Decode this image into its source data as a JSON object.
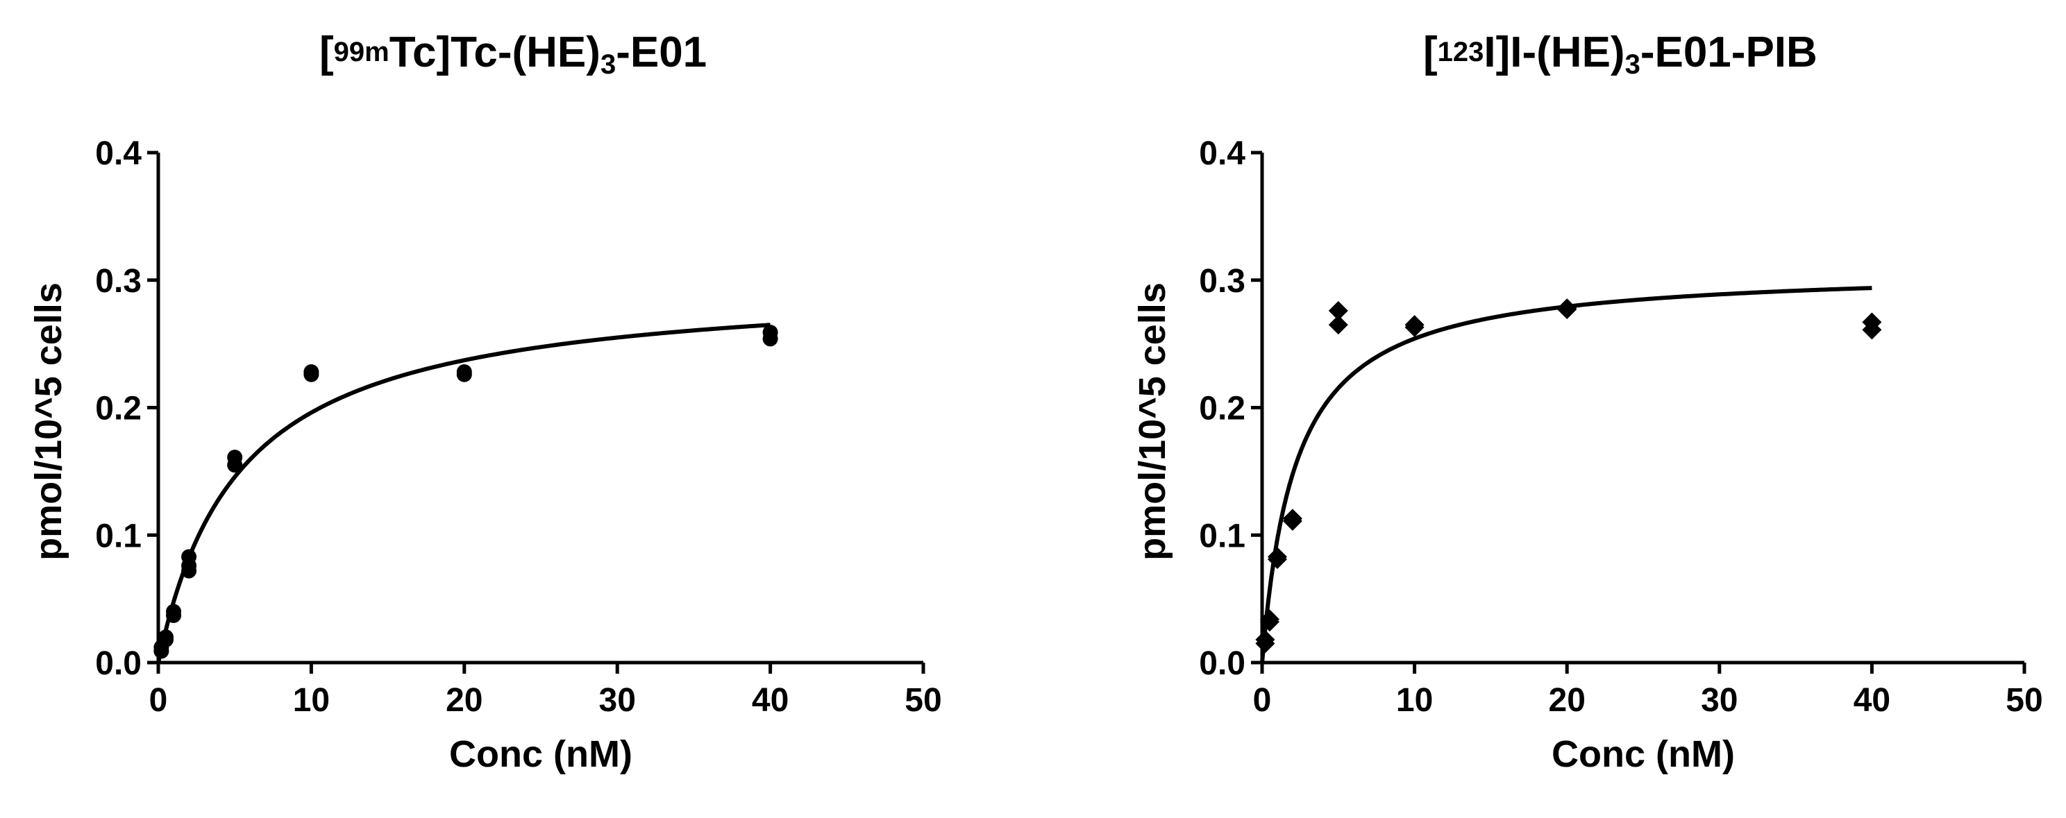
{
  "chart_data": [
    {
      "type": "scatter",
      "title": {
        "pre": "[",
        "sup": "99m",
        "mid": "Tc]Tc-(HE)",
        "sub": "3",
        "post": "-E01"
      },
      "xlabel": "Conc (nM)",
      "ylabel": "pmol/10^5 cells",
      "xlim": [
        0,
        50
      ],
      "ylim": [
        0,
        0.4
      ],
      "xticks": [
        0,
        10,
        20,
        30,
        40,
        50
      ],
      "xtick_labels": [
        "0",
        "10",
        "20",
        "30",
        "40",
        "50"
      ],
      "yticks": [
        0,
        0.1,
        0.2,
        0.3,
        0.4
      ],
      "ytick_labels": [
        "0.0",
        "0.1",
        "0.2",
        "0.3",
        "0.4"
      ],
      "marker": "circle",
      "points": [
        {
          "x": 0.2,
          "y": 0.009
        },
        {
          "x": 0.2,
          "y": 0.012
        },
        {
          "x": 0.5,
          "y": 0.018
        },
        {
          "x": 0.5,
          "y": 0.02
        },
        {
          "x": 1,
          "y": 0.037
        },
        {
          "x": 1,
          "y": 0.04
        },
        {
          "x": 2,
          "y": 0.072
        },
        {
          "x": 2,
          "y": 0.076
        },
        {
          "x": 2,
          "y": 0.083
        },
        {
          "x": 5,
          "y": 0.155
        },
        {
          "x": 5,
          "y": 0.161
        },
        {
          "x": 10,
          "y": 0.226
        },
        {
          "x": 10,
          "y": 0.228
        },
        {
          "x": 20,
          "y": 0.226
        },
        {
          "x": 20,
          "y": 0.228
        },
        {
          "x": 40,
          "y": 0.254
        },
        {
          "x": 40,
          "y": 0.259
        }
      ],
      "fit": {
        "model": "one-site specific binding",
        "bmax": 0.3,
        "kd": 5.3,
        "x_range": [
          0,
          40
        ]
      },
      "grid": false
    },
    {
      "type": "scatter",
      "title": {
        "pre": "[",
        "sup": "123",
        "mid": "I]I-(HE)",
        "sub": "3",
        "post": "-E01-PIB"
      },
      "xlabel": "Conc (nM)",
      "ylabel": "pmol/10^5 cells",
      "xlim": [
        0,
        50
      ],
      "ylim": [
        0,
        0.4
      ],
      "xticks": [
        0,
        10,
        20,
        30,
        40,
        50
      ],
      "xtick_labels": [
        "0",
        "10",
        "20",
        "30",
        "40",
        "50"
      ],
      "yticks": [
        0,
        0.1,
        0.2,
        0.3,
        0.4
      ],
      "ytick_labels": [
        "0.0",
        "0.1",
        "0.2",
        "0.3",
        "0.4"
      ],
      "marker": "diamond",
      "points": [
        {
          "x": 0.2,
          "y": 0.015
        },
        {
          "x": 0.2,
          "y": 0.018
        },
        {
          "x": 0.5,
          "y": 0.032
        },
        {
          "x": 0.5,
          "y": 0.034
        },
        {
          "x": 1,
          "y": 0.081
        },
        {
          "x": 1,
          "y": 0.083
        },
        {
          "x": 2,
          "y": 0.111
        },
        {
          "x": 2,
          "y": 0.113
        },
        {
          "x": 5,
          "y": 0.265
        },
        {
          "x": 5,
          "y": 0.276
        },
        {
          "x": 10,
          "y": 0.263
        },
        {
          "x": 10,
          "y": 0.265
        },
        {
          "x": 20,
          "y": 0.277
        },
        {
          "x": 20,
          "y": 0.278
        },
        {
          "x": 40,
          "y": 0.261
        },
        {
          "x": 40,
          "y": 0.267
        }
      ],
      "fit": {
        "model": "one-site specific binding",
        "bmax": 0.31,
        "kd": 2.2,
        "x_range": [
          0,
          40
        ]
      },
      "grid": false
    }
  ]
}
